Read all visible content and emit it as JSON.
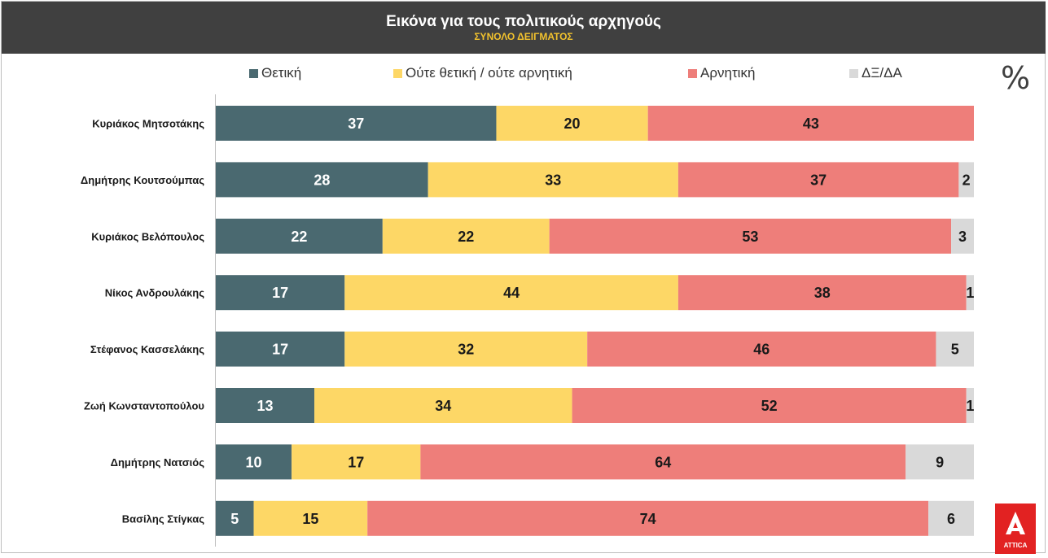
{
  "header": {
    "title": "Εικόνα για τους πολιτικούς αρχηγούς",
    "subtitle": "ΣΥΝΟΛΟ ΔΕΙΓΜΑΤΟΣ"
  },
  "unit_symbol": "%",
  "logo": {
    "name": "attica-logo",
    "text": "ATTICA"
  },
  "colors": {
    "positive": "#4a6970",
    "neutral": "#fdd766",
    "negative": "#ee7e7a",
    "dk_na": "#d9d9d9"
  },
  "legend": [
    {
      "label": "Θετική",
      "color": "#4a6970"
    },
    {
      "label": "Ούτε θετική / ούτε αρνητική",
      "color": "#fdd766"
    },
    {
      "label": "Αρνητική",
      "color": "#ee7e7a"
    },
    {
      "label": "ΔΞ/ΔΑ",
      "color": "#d9d9d9"
    }
  ],
  "chart_data": {
    "type": "bar",
    "orientation": "horizontal",
    "stacked": true,
    "title": "Εικόνα για τους πολιτικούς αρχηγούς",
    "subtitle": "ΣΥΝΟΛΟ ΔΕΙΓΜΑΤΟΣ",
    "xlim": [
      0,
      100
    ],
    "grid": false,
    "legend_position": "top",
    "categories": [
      "Κυριάκος Μητσοτάκης",
      "Δημήτρης Κουτσούμπας",
      "Κυριάκος Βελόπουλος",
      "Νίκος Ανδρουλάκης",
      "Στέφανος Κασσελάκης",
      "Ζωή Κωνσταντοπούλου",
      "Δημήτρης Νατσιός",
      "Βασίλης Στίγκας"
    ],
    "series": [
      {
        "name": "Θετική",
        "color": "#4a6970",
        "values": [
          37,
          28,
          22,
          17,
          17,
          13,
          10,
          5
        ]
      },
      {
        "name": "Ούτε θετική / ούτε αρνητική",
        "color": "#fdd766",
        "values": [
          20,
          33,
          22,
          44,
          32,
          34,
          17,
          15
        ]
      },
      {
        "name": "Αρνητική",
        "color": "#ee7e7a",
        "values": [
          43,
          37,
          53,
          38,
          46,
          52,
          64,
          74
        ]
      },
      {
        "name": "ΔΞ/ΔΑ",
        "color": "#d9d9d9",
        "values": [
          0,
          2,
          3,
          1,
          5,
          1,
          9,
          6
        ]
      }
    ]
  }
}
